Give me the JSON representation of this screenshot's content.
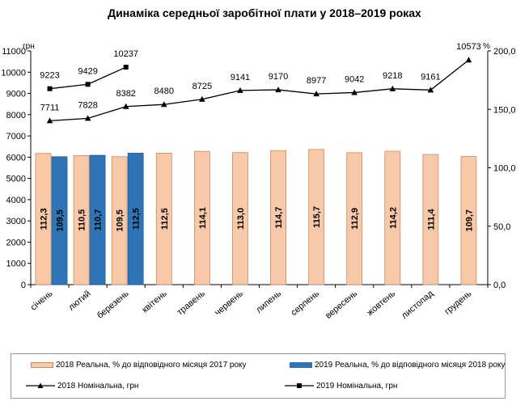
{
  "chart_data": {
    "type": "bar",
    "title": "Динаміка середньої заробітної плати у 2018–2019 роках",
    "left_unit": "грн",
    "right_unit": "%",
    "y_left_lim": [
      0,
      11000
    ],
    "y_left_ticks": [
      "0",
      "1000",
      "2000",
      "3000",
      "4000",
      "5000",
      "6000",
      "7000",
      "8000",
      "9000",
      "10000",
      "11000"
    ],
    "y_right_lim": [
      0,
      200
    ],
    "y_right_ticks": [
      "0,0",
      "50,0",
      "100,0",
      "150,0",
      "200,0"
    ],
    "categories": [
      "січень",
      "лютий",
      "березень",
      "квітень",
      "травень",
      "червень",
      "липень",
      "серпень",
      "вересень",
      "жовтень",
      "листопад",
      "грудень"
    ],
    "series": [
      {
        "name": "2018 Реальна, % до відповідного місяця 2017 року",
        "kind": "bar",
        "axis": "right",
        "color": "#f8c9a8",
        "values": [
          112.3,
          110.5,
          109.5,
          112.5,
          114.1,
          113.0,
          114.7,
          115.7,
          112.9,
          114.2,
          111.4,
          109.7
        ],
        "labels": [
          "112,3",
          "110,5",
          "109,5",
          "112,5",
          "114,1",
          "113,0",
          "114,7",
          "115,7",
          "112,9",
          "114,2",
          "111,4",
          "109,7"
        ]
      },
      {
        "name": "2019 Реальна, % до відповідного місяця 2018 року",
        "kind": "bar",
        "axis": "right",
        "color": "#2e75b6",
        "values": [
          109.5,
          110.7,
          112.5,
          null,
          null,
          null,
          null,
          null,
          null,
          null,
          null,
          null
        ],
        "labels": [
          "109,5",
          "110,7",
          "112,5"
        ]
      },
      {
        "name": "2018 Номінальна, грн",
        "kind": "line",
        "axis": "left",
        "marker": "triangle",
        "color": "#000000",
        "values": [
          7711,
          7828,
          8382,
          8480,
          8725,
          9141,
          9170,
          8977,
          9042,
          9218,
          9161,
          10573
        ]
      },
      {
        "name": "2019 Номінальна, грн",
        "kind": "line",
        "axis": "left",
        "marker": "square",
        "color": "#000000",
        "values": [
          9223,
          9429,
          10237,
          null,
          null,
          null,
          null,
          null,
          null,
          null,
          null,
          null
        ]
      }
    ],
    "grid": false,
    "legend_position": "bottom"
  }
}
